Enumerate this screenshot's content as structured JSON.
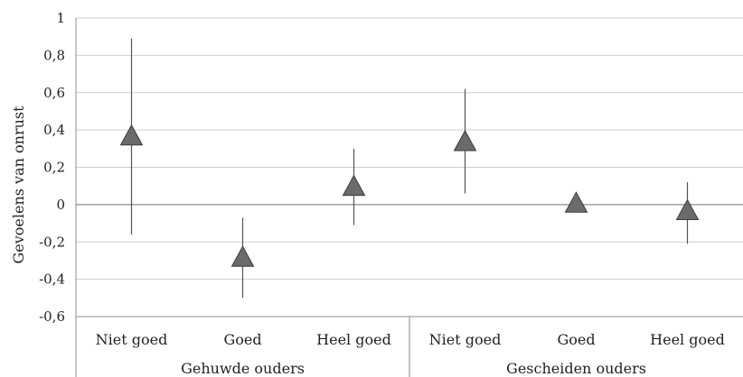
{
  "chart_data": {
    "type": "scatter",
    "ylabel": "Gevoelens van onrust",
    "ylim": [
      -0.6,
      1
    ],
    "yticks": [
      1,
      0.8,
      0.6,
      0.4,
      0.2,
      0,
      -0.2,
      -0.4,
      -0.6
    ],
    "ytick_labels": [
      "1",
      "0,8",
      "0,6",
      "0,4",
      "0,2",
      "0",
      "-0,2",
      "-0,4",
      "-0,6"
    ],
    "grid": true,
    "groups": [
      {
        "label": "Gehuwde ouders",
        "points": [
          {
            "category": "Niet goed",
            "value": 0.36,
            "low": -0.16,
            "high": 0.89
          },
          {
            "category": "Goed",
            "value": -0.29,
            "low": -0.5,
            "high": -0.07
          },
          {
            "category": "Heel goed",
            "value": 0.09,
            "low": -0.11,
            "high": 0.3
          }
        ]
      },
      {
        "label": "Gescheiden ouders",
        "points": [
          {
            "category": "Niet goed",
            "value": 0.33,
            "low": 0.06,
            "high": 0.62
          },
          {
            "category": "Goed",
            "value": 0.0,
            "low": 0.0,
            "high": 0.0
          },
          {
            "category": "Heel goed",
            "value": -0.04,
            "low": -0.21,
            "high": 0.12
          }
        ]
      }
    ],
    "colors": {
      "marker_fill": "#6b6b6b",
      "marker_stroke": "#3c3c3c",
      "error_bar": "#555555",
      "grid": "#cfcfcf",
      "axis": "#8c8c8c"
    }
  }
}
